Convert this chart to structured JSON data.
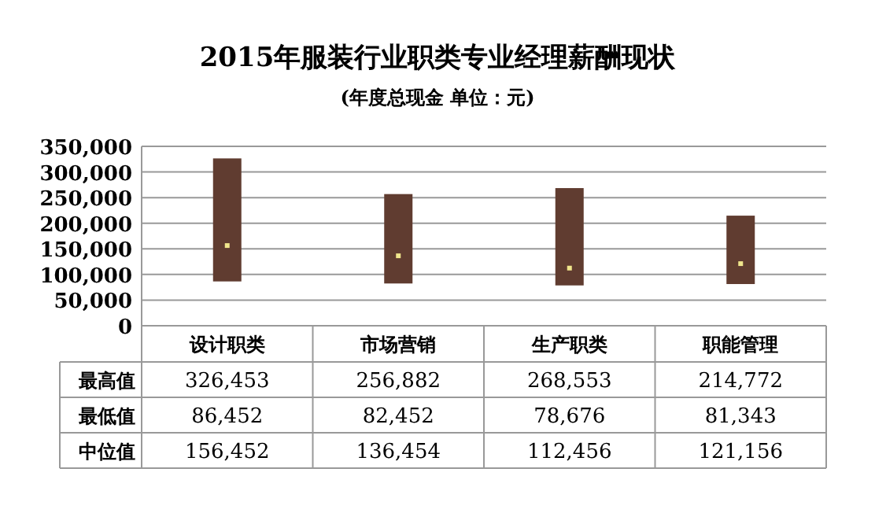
{
  "chart_data": {
    "type": "bar",
    "title": "2015年服装行业职类专业经理薪酬现状",
    "subtitle": "(年度总现金 单位：元)",
    "categories": [
      "设计职类",
      "市场营销",
      "生产职类",
      "职能管理"
    ],
    "ylim": [
      0,
      350000
    ],
    "yticks": [
      {
        "value": 0,
        "label": "0"
      },
      {
        "value": 50000,
        "label": "50,000"
      },
      {
        "value": 100000,
        "label": "100,000"
      },
      {
        "value": 150000,
        "label": "150,000"
      },
      {
        "value": 200000,
        "label": "200,000"
      },
      {
        "value": 250000,
        "label": "250,000"
      },
      {
        "value": 300000,
        "label": "300,000"
      },
      {
        "value": 350000,
        "label": "350,000"
      }
    ],
    "grid": "y",
    "annotations": [
      "最高值",
      "最低值",
      "中位值",
      "86,452",
      "82,452",
      "78,676",
      "81,343"
    ],
    "series": [
      {
        "color": "#603c30",
        "base": [
          86452,
          82452,
          78676,
          81343
        ],
        "values": [
          240001,
          174430,
          189877,
          133429
        ],
        "value_labels": [
          "326,453",
          "256,882",
          "268,553",
          "214,772"
        ]
      },
      {
        "type": "scatter",
        "marker": "square",
        "color": "#f0e68c",
        "values": [
          156452,
          136454,
          112456,
          121156
        ],
        "value_labels": [
          "156,452",
          "136,454",
          "112,456",
          "121,156"
        ]
      }
    ]
  }
}
